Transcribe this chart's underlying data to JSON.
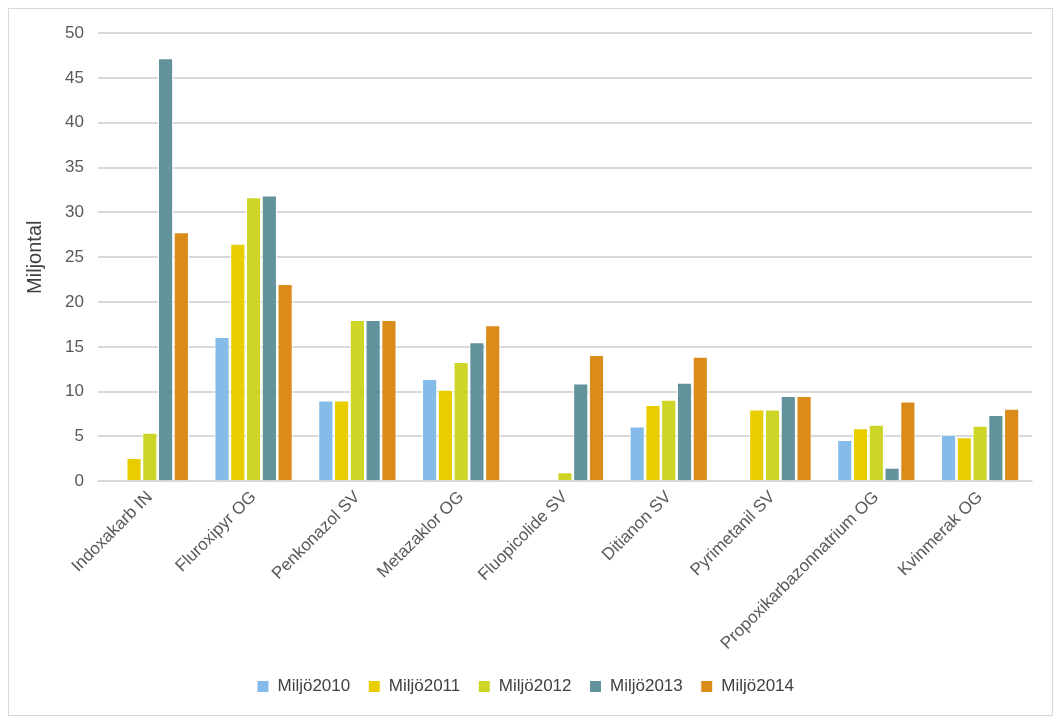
{
  "chart_data": {
    "type": "bar",
    "ylabel": "Miljontal",
    "categories": [
      "Indoxakarb IN",
      "Fluroxipyr OG",
      "Penkonazol SV",
      "Metazaklor OG",
      "Fluopicolide SV",
      "Ditianon SV",
      "Pyrimetanil SV",
      "Propoxikarbazonnatrium OG",
      "Kvinmerak OG"
    ],
    "series": [
      {
        "name": "Miljö2010",
        "color": "#85bbe8",
        "values": [
          null,
          16.1,
          9.0,
          11.4,
          null,
          6.1,
          null,
          4.6,
          5.2
        ]
      },
      {
        "name": "Miljö2011",
        "color": "#e8cd00",
        "values": [
          2.6,
          26.5,
          9.0,
          10.2,
          null,
          8.5,
          8.0,
          5.9,
          4.9
        ]
      },
      {
        "name": "Miljö2012",
        "color": "#cdd526",
        "values": [
          5.4,
          31.7,
          18.0,
          13.3,
          1.0,
          9.1,
          8.0,
          6.3,
          6.2
        ]
      },
      {
        "name": "Miljö2013",
        "color": "#62939d",
        "values": [
          47.2,
          31.9,
          18.0,
          15.5,
          10.9,
          11.0,
          9.5,
          1.5,
          7.4
        ]
      },
      {
        "name": "Miljö2014",
        "color": "#db8b1a",
        "values": [
          27.8,
          22.0,
          18.0,
          17.4,
          14.1,
          13.9,
          9.5,
          8.9,
          8.1
        ]
      }
    ],
    "ylim": [
      0,
      50
    ],
    "yticks": [
      0,
      5,
      10,
      15,
      20,
      25,
      30,
      35,
      40,
      45,
      50
    ],
    "grid": "y",
    "legend": "bottom"
  }
}
